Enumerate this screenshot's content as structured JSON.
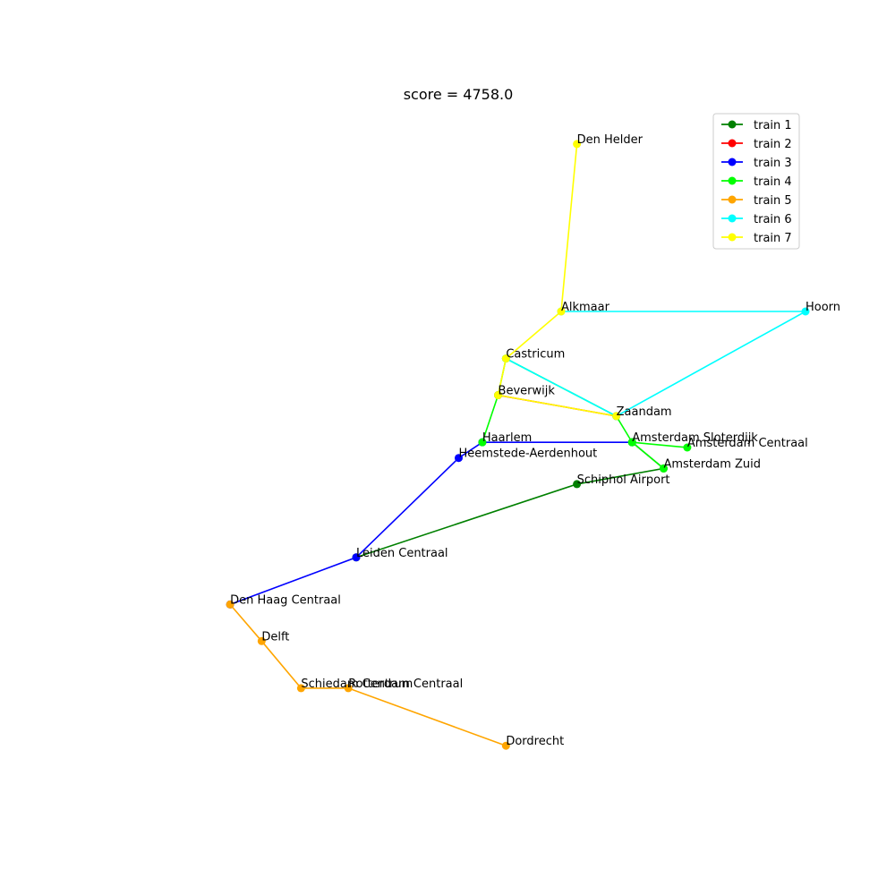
{
  "chart_data": {
    "type": "line",
    "title": "score = 4758.0",
    "xlabel": "",
    "ylabel": "",
    "grid": false,
    "axes_visible": false,
    "legend_position": "top-right",
    "xlim": [
      4.17,
      5.05
    ],
    "ylim": [
      51.73,
      53.03
    ],
    "stations": [
      {
        "name": "Amsterdam Centraal",
        "x": 4.9,
        "y": 52.38
      },
      {
        "name": "Amsterdam Zuid",
        "x": 4.87,
        "y": 52.34
      },
      {
        "name": "Amsterdam Sloterdijk",
        "x": 4.83,
        "y": 52.39
      },
      {
        "name": "Zaandam",
        "x": 4.81,
        "y": 52.44
      },
      {
        "name": "Schiphol Airport",
        "x": 4.76,
        "y": 52.31
      },
      {
        "name": "Hoorn",
        "x": 5.05,
        "y": 52.64
      },
      {
        "name": "Alkmaar",
        "x": 4.74,
        "y": 52.64
      },
      {
        "name": "Den Helder",
        "x": 4.76,
        "y": 52.96
      },
      {
        "name": "Castricum",
        "x": 4.67,
        "y": 52.55
      },
      {
        "name": "Beverwijk",
        "x": 4.66,
        "y": 52.48
      },
      {
        "name": "Haarlem",
        "x": 4.64,
        "y": 52.39
      },
      {
        "name": "Heemstede-Aerdenhout",
        "x": 4.61,
        "y": 52.36
      },
      {
        "name": "Leiden Centraal",
        "x": 4.48,
        "y": 52.17
      },
      {
        "name": "Den Haag Centraal",
        "x": 4.32,
        "y": 52.08
      },
      {
        "name": "Delft",
        "x": 4.36,
        "y": 52.01
      },
      {
        "name": "Schiedam Centrum",
        "x": 4.41,
        "y": 51.92
      },
      {
        "name": "Rotterdam Centraal",
        "x": 4.47,
        "y": 51.92
      },
      {
        "name": "Dordrecht",
        "x": 4.67,
        "y": 51.81
      }
    ],
    "series": [
      {
        "name": "train 1",
        "color": "#008000",
        "stations": [
          "Leiden Centraal",
          "Schiphol Airport",
          "Amsterdam Zuid",
          "Amsterdam Sloterdijk"
        ]
      },
      {
        "name": "train 2",
        "color": "#ff0000",
        "stations": [
          "Zaandam",
          "Beverwijk"
        ]
      },
      {
        "name": "train 3",
        "color": "#0000ff",
        "stations": [
          "Amsterdam Sloterdijk",
          "Haarlem",
          "Heemstede-Aerdenhout",
          "Leiden Centraal",
          "Den Haag Centraal"
        ]
      },
      {
        "name": "train 4",
        "color": "#00ff00",
        "stations": [
          "Amsterdam Centraal",
          "Amsterdam Sloterdijk",
          "Amsterdam Zuid",
          "Amsterdam Sloterdijk",
          "Zaandam",
          "Castricum",
          "Beverwijk",
          "Haarlem"
        ]
      },
      {
        "name": "train 5",
        "color": "#ffa500",
        "stations": [
          "Dordrecht",
          "Rotterdam Centraal",
          "Schiedam Centrum",
          "Delft",
          "Den Haag Centraal"
        ]
      },
      {
        "name": "train 6",
        "color": "#00ffff",
        "stations": [
          "Alkmaar",
          "Hoorn",
          "Zaandam",
          "Castricum"
        ]
      },
      {
        "name": "train 7",
        "color": "#ffff00",
        "stations": [
          "Den Helder",
          "Alkmaar",
          "Castricum",
          "Beverwijk",
          "Zaandam"
        ]
      }
    ]
  }
}
